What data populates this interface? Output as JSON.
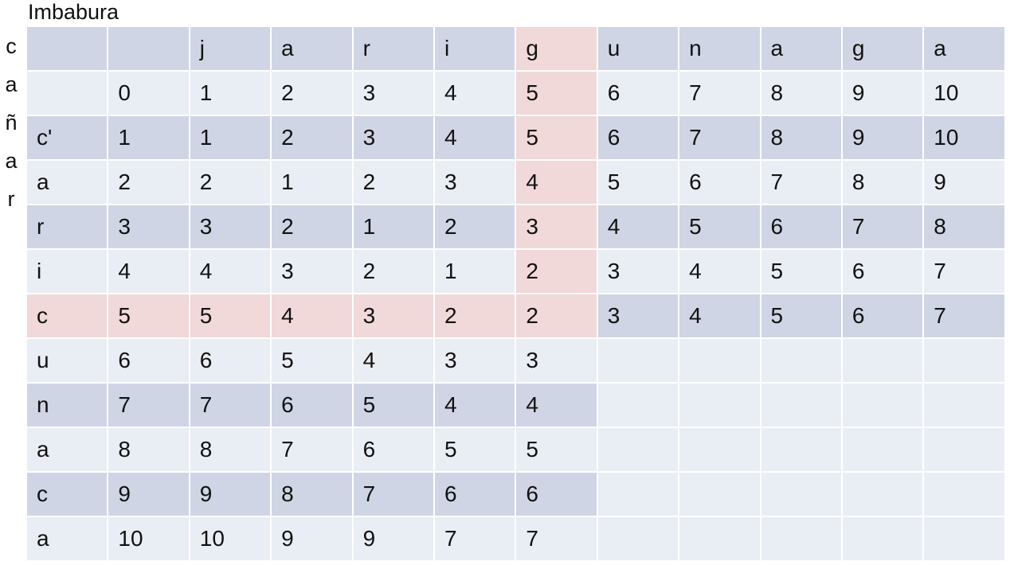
{
  "title": "Imbabura",
  "vertical_label": [
    "c",
    "a",
    "ñ",
    "a",
    "r"
  ],
  "colors": {
    "header_band": "#cfd5e4",
    "light_band": "#e9edf4",
    "highlight": "#f1d8d9"
  },
  "table": {
    "rows": [
      [
        "",
        "",
        "j",
        "a",
        "r",
        "i",
        "g",
        "u",
        "n",
        "a",
        "g",
        "a"
      ],
      [
        "",
        "0",
        "1",
        "2",
        "3",
        "4",
        "5",
        "6",
        "7",
        "8",
        "9",
        "10"
      ],
      [
        "c'",
        "1",
        "1",
        "2",
        "3",
        "4",
        "5",
        "6",
        "7",
        "8",
        "9",
        "10"
      ],
      [
        "a",
        "2",
        "2",
        "1",
        "2",
        "3",
        "4",
        "5",
        "6",
        "7",
        "8",
        "9"
      ],
      [
        "r",
        "3",
        "3",
        "2",
        "1",
        "2",
        "3",
        "4",
        "5",
        "6",
        "7",
        "8"
      ],
      [
        "i",
        "4",
        "4",
        "3",
        "2",
        "1",
        "2",
        "3",
        "4",
        "5",
        "6",
        "7"
      ],
      [
        "c",
        "5",
        "5",
        "4",
        "3",
        "2",
        "2",
        "3",
        "4",
        "5",
        "6",
        "7"
      ],
      [
        "u",
        "6",
        "6",
        "5",
        "4",
        "3",
        "3",
        "",
        "",
        "",
        "",
        ""
      ],
      [
        "n",
        "7",
        "7",
        "6",
        "5",
        "4",
        "4",
        "",
        "",
        "",
        "",
        ""
      ],
      [
        "a",
        "8",
        "8",
        "7",
        "6",
        "5",
        "5",
        "",
        "",
        "",
        "",
        ""
      ],
      [
        "c",
        "9",
        "9",
        "8",
        "7",
        "6",
        "6",
        "",
        "",
        "",
        "",
        ""
      ],
      [
        "a",
        "10",
        "10",
        "9",
        "9",
        "7",
        "7",
        "",
        "",
        "",
        "",
        ""
      ]
    ],
    "highlight_column": 6,
    "highlight_row": 6
  }
}
